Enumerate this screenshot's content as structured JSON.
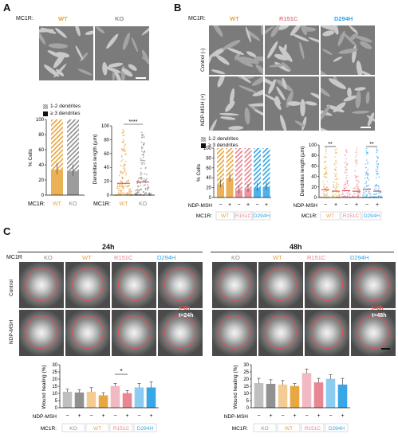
{
  "panels": {
    "A": "A",
    "B": "B",
    "C": "C"
  },
  "colors": {
    "wt": "#e8a33a",
    "r151c": "#e7808f",
    "d294h": "#2fa3e6",
    "ko": "#8c8c8c",
    "ko_dark": "#777777",
    "wound": "#e05050",
    "mic_bg": "#808080"
  },
  "panelA": {
    "mc1r_label": "MC1R:",
    "genotypes": [
      "WT",
      "KO"
    ],
    "legend": [
      "1-2 dendrites",
      "≥ 3 dendrites"
    ],
    "cells_ylabel": "% Cells",
    "cells_yticks": [
      "0",
      "20",
      "40",
      "60",
      "80",
      "100"
    ],
    "dend_ylabel": "Dendrites length (µm)",
    "dend_yticks": [
      "0",
      "20",
      "40",
      "60",
      "80",
      "100"
    ],
    "significance": "****",
    "xlabel_prefix": "MC1R:"
  },
  "panelB": {
    "mc1r_label": "MC1R:",
    "genotypes": [
      "WT",
      "R151C",
      "D294H"
    ],
    "rows": [
      "Control (-)",
      "NDP-MSH (+)"
    ],
    "legend": [
      "1-2 dendrites",
      "≥ 3 dendrites"
    ],
    "cells_ylabel": "% Cells",
    "dend_ylabel": "Dendrites length (µm)",
    "yticks": [
      "0",
      "20",
      "40",
      "60",
      "80",
      "100"
    ],
    "signs": [
      "−",
      "+",
      "−",
      "+",
      "−",
      "+"
    ],
    "ndp_label": "NDP-MSH",
    "mc1r_axis": "MC1R:",
    "significance": [
      "**",
      "**"
    ]
  },
  "panelC": {
    "times": [
      "24h",
      "48h"
    ],
    "mc1r_label": "MC1R",
    "genotypes": [
      "KO",
      "WT",
      "R151C",
      "D294H"
    ],
    "rows": [
      "Control",
      "NDP-MSH"
    ],
    "t_labels": [
      "t=0h",
      "t=24h",
      "t=0h",
      "t=48h"
    ],
    "ylabel": "Wound healing (%)",
    "yticks": [
      "0",
      "5",
      "10",
      "15",
      "20",
      "25",
      "30"
    ],
    "signs": [
      "−",
      "+",
      "−",
      "+",
      "−",
      "+",
      "−",
      "+"
    ],
    "ndp_label": "NDP-MSH",
    "mc1r_axis": "MC1R:",
    "significance": "*"
  },
  "chart_data": [
    {
      "type": "bar",
      "title": "",
      "ylabel": "% Cells",
      "categories": [
        "WT",
        "KO"
      ],
      "ylim": [
        0,
        100
      ],
      "series": [
        {
          "name": "≥ 3 dendrites",
          "values": [
            34,
            32
          ]
        },
        {
          "name": "1-2 dendrites",
          "values": [
            66,
            68
          ]
        }
      ]
    },
    {
      "type": "scatter",
      "title": "",
      "ylabel": "Dendrites length (µm)",
      "categories": [
        "WT",
        "KO"
      ],
      "ylim": [
        0,
        100
      ],
      "medians": [
        17,
        19
      ]
    },
    {
      "type": "bar",
      "title": "",
      "ylabel": "% Cells",
      "categories": [
        "WT −",
        "WT +",
        "R151C −",
        "R151C +",
        "D294H −",
        "D294H +"
      ],
      "ylim": [
        0,
        100
      ],
      "series": [
        {
          "name": "≥ 3 dendrites",
          "values": [
            27,
            39,
            15,
            18,
            20,
            22
          ]
        },
        {
          "name": "1-2 dendrites",
          "values": [
            73,
            61,
            85,
            82,
            80,
            78
          ]
        }
      ]
    },
    {
      "type": "scatter",
      "title": "",
      "ylabel": "Dendrites length (µm)",
      "categories": [
        "WT −",
        "WT +",
        "R151C −",
        "R151C +",
        "D294H −",
        "D294H +"
      ],
      "ylim": [
        0,
        100
      ],
      "medians": [
        15,
        12,
        13,
        12,
        16,
        12
      ]
    },
    {
      "type": "bar",
      "title": "24h",
      "ylabel": "Wound healing (%)",
      "categories": [
        "KO −",
        "KO +",
        "WT −",
        "WT +",
        "R151C −",
        "R151C +",
        "D294H −",
        "D294H +"
      ],
      "ylim": [
        0,
        30
      ],
      "values": [
        11,
        10.5,
        11,
        8.5,
        15,
        10,
        14,
        14
      ],
      "errors": [
        2,
        2,
        3,
        2,
        2,
        2,
        3,
        4
      ]
    },
    {
      "type": "bar",
      "title": "48h",
      "ylabel": "Wound healing (%)",
      "categories": [
        "KO −",
        "KO +",
        "WT −",
        "WT +",
        "R151C −",
        "R151C +",
        "D294H −",
        "D294H +"
      ],
      "ylim": [
        0,
        30
      ],
      "values": [
        17,
        16.5,
        16,
        15,
        24,
        17.5,
        20,
        16
      ],
      "errors": [
        3.5,
        3,
        3,
        2,
        3,
        3,
        3,
        4.5
      ]
    }
  ]
}
